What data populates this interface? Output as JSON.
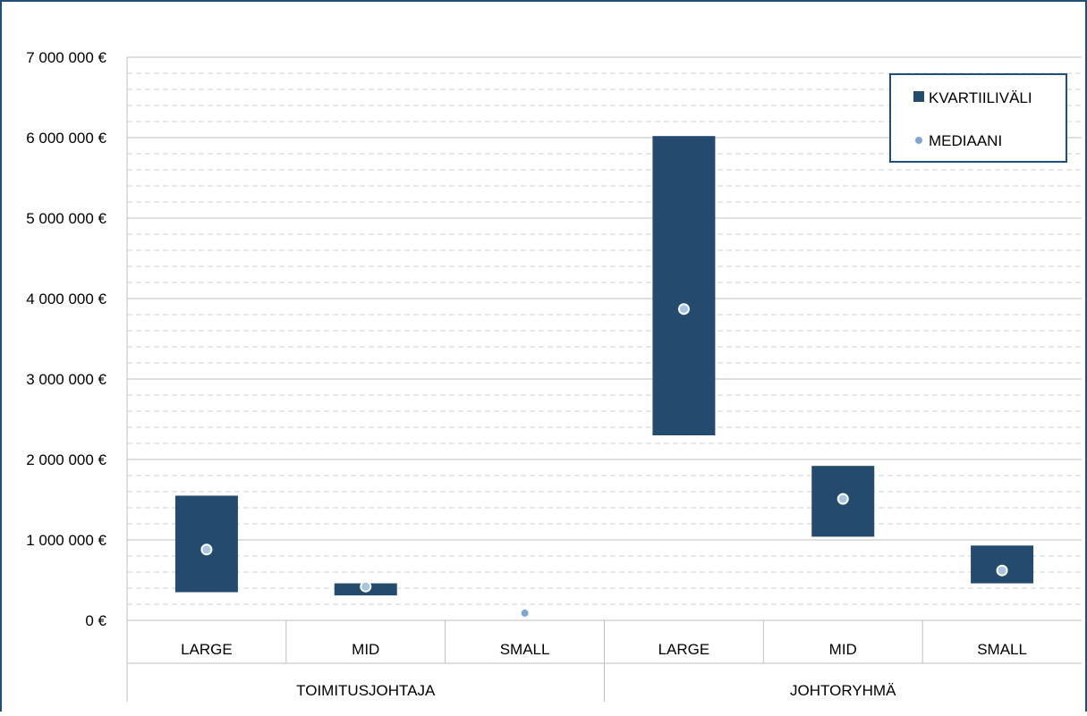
{
  "chart_data": {
    "type": "box",
    "title": "",
    "xlabel": "",
    "ylabel": "",
    "ylim": [
      0,
      7000000
    ],
    "y_major_step": 1000000,
    "y_minor_step": 200000,
    "y_tick_labels": [
      "0 €",
      "1 000 000 €",
      "2 000 000 €",
      "3 000 000 €",
      "4 000 000 €",
      "5 000 000 €",
      "6 000 000 €",
      "7 000 000 €"
    ],
    "groups": [
      {
        "label": "TOIMITUSJOHTAJA",
        "categories": [
          "LARGE",
          "MID",
          "SMALL"
        ]
      },
      {
        "label": "JOHTORYHMÄ",
        "categories": [
          "LARGE",
          "MID",
          "SMALL"
        ]
      }
    ],
    "series": [
      {
        "name": "KVARTIILIVÄLI",
        "low": [
          350000,
          310000,
          null,
          2300000,
          1040000,
          460000
        ],
        "high": [
          1550000,
          460000,
          null,
          6020000,
          1920000,
          930000
        ]
      },
      {
        "name": "MEDIAANI",
        "values": [
          880000,
          420000,
          90000,
          3870000,
          1510000,
          620000
        ]
      }
    ],
    "legend": {
      "position": "top-right",
      "items": [
        "KVARTIILIVÄLI",
        "MEDIAANI"
      ]
    },
    "colors": {
      "bar": "#244b6e",
      "median_fill": "#a8c4e0",
      "median_small": "#7fa6d3",
      "grid_major": "#bfbfbf",
      "grid_minor": "#d0d0d0",
      "frame": "#1f4e79"
    },
    "grid": true
  }
}
